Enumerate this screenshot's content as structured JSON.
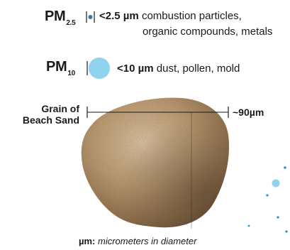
{
  "pm25": {
    "label_main": "PM",
    "label_sub": "2.5",
    "size_text": "<2.5 µm",
    "desc_line1": "combustion particles,",
    "desc_line2": "organic compounds, metals"
  },
  "pm10": {
    "label_main": "PM",
    "label_sub": "10",
    "size_text": "<10 µm",
    "desc": "dust, pollen, mold"
  },
  "sand": {
    "label_line1": "Grain of",
    "label_line2": "Beach Sand",
    "measure": "~90µm"
  },
  "footer": {
    "unit": "µm:",
    "text": "micrometers in diameter"
  },
  "colors": {
    "pm25_dot": "#2b7f9c",
    "pm10_circle": "#8fd3ec",
    "sand_light": "#c8ad8a",
    "sand_dark": "#6b5238",
    "scatter_dot": "#2a93c2"
  }
}
